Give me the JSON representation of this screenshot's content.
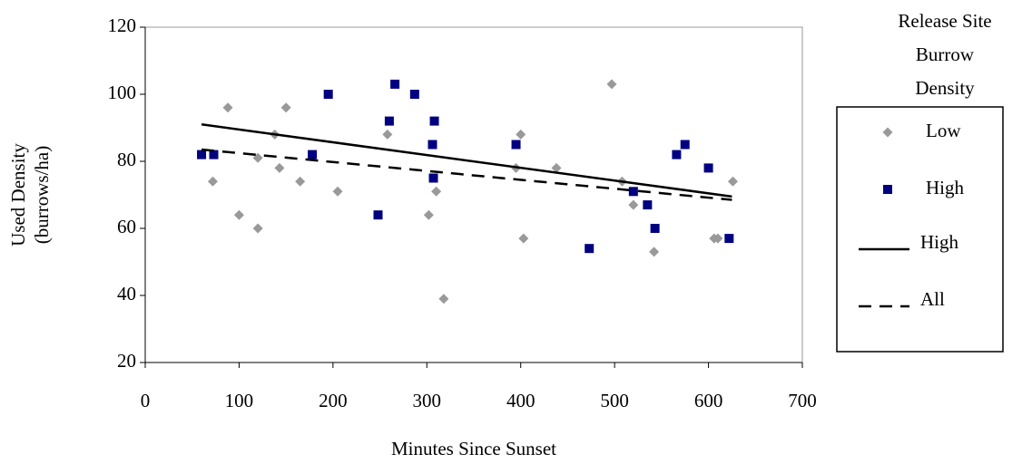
{
  "chart_data": {
    "type": "scatter",
    "x_label": "Minutes Since Sunset",
    "y_label_lines": [
      "Used Density",
      "(burrows/ha)"
    ],
    "legend_title_lines": [
      "Release Site",
      "Burrow",
      "Density"
    ],
    "legend_position": "right",
    "xlim": [
      0,
      700
    ],
    "xticks": [
      0,
      100,
      200,
      300,
      400,
      500,
      600,
      700
    ],
    "ylim": [
      20,
      120
    ],
    "yticks": [
      20,
      40,
      60,
      80,
      100,
      120
    ],
    "series": [
      {
        "name": "Low",
        "color": "#999999",
        "marker": "diamond",
        "x": [
          72,
          88,
          100,
          120,
          120,
          138,
          143,
          150,
          165,
          205,
          258,
          302,
          310,
          318,
          395,
          400,
          403,
          438,
          497,
          508,
          520,
          542,
          606,
          610,
          626
        ],
        "values": [
          74,
          96,
          64,
          60,
          81,
          88,
          78,
          96,
          74,
          71,
          88,
          64,
          71,
          39,
          78,
          88,
          57,
          78,
          103,
          74,
          67,
          53,
          57,
          57,
          74
        ]
      },
      {
        "name": "High",
        "color": "#000080",
        "marker": "square",
        "x": [
          60,
          73,
          178,
          195,
          248,
          260,
          266,
          287,
          306,
          307,
          308,
          395,
          473,
          520,
          535,
          543,
          566,
          575,
          600,
          622
        ],
        "values": [
          82,
          82,
          82,
          100,
          64,
          92,
          103,
          100,
          85,
          75,
          92,
          85,
          54,
          71,
          67,
          60,
          82,
          85,
          78,
          57
        ]
      }
    ],
    "trendlines": [
      {
        "name": "High",
        "color": "#000000",
        "dashed": false,
        "x": [
          60,
          625
        ],
        "values": [
          91,
          69.5
        ]
      },
      {
        "name": "All",
        "color": "#000000",
        "dashed": true,
        "x": [
          60,
          625
        ],
        "values": [
          83.5,
          68.5
        ]
      }
    ]
  }
}
